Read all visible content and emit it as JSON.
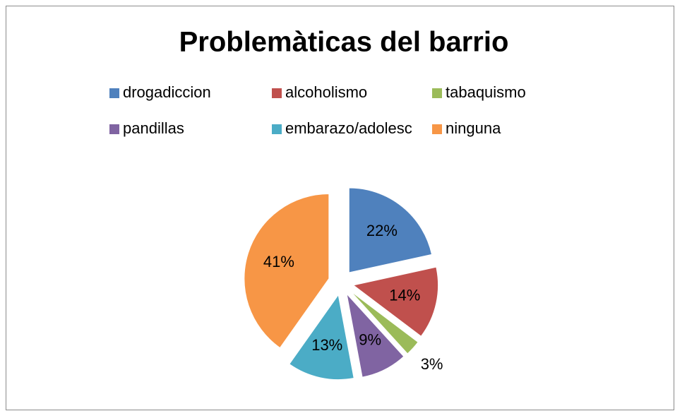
{
  "chart_data": {
    "type": "pie",
    "title": "Problemàticas  del barrio",
    "categories": [
      "drogadiccion",
      "alcoholismo",
      "tabaquismo",
      "pandillas",
      "embarazo/adolesc",
      "ninguna"
    ],
    "values": [
      22,
      14,
      3,
      9,
      13,
      41
    ],
    "value_labels": [
      "22%",
      "14%",
      "3%",
      "9%",
      "13%",
      "41%"
    ],
    "colors": [
      "#4f81bd",
      "#c0504d",
      "#9bbb59",
      "#8064a2",
      "#4bacc6",
      "#f79646"
    ],
    "legend": "top"
  }
}
